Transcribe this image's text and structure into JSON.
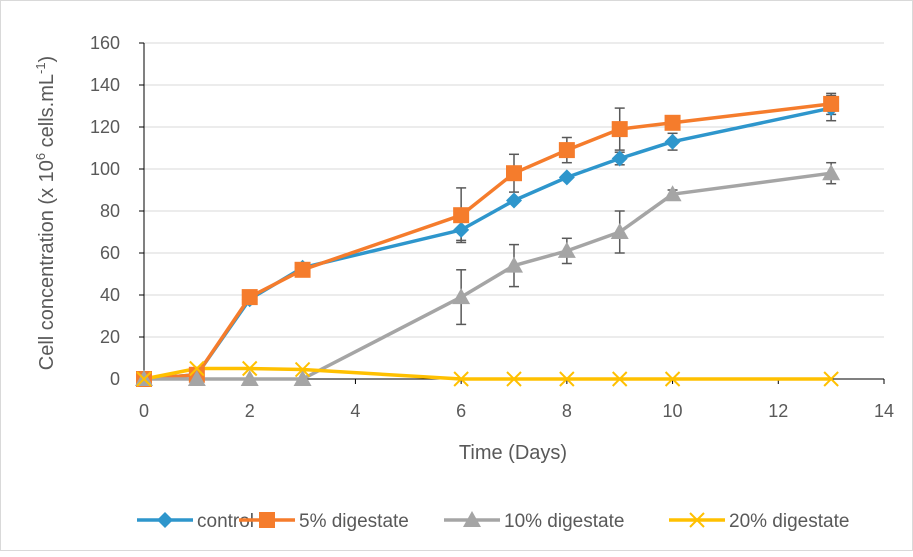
{
  "chart_data": {
    "type": "line",
    "title": "",
    "xlabel": "Time (Days)",
    "ylabel_main": "Cell concentration (x 10",
    "ylabel_exp": "6",
    "ylabel_mid": " cells.mL",
    "ylabel_sup": "-1",
    "ylabel_end": ")",
    "xlim": [
      0,
      14
    ],
    "ylim": [
      0,
      160
    ],
    "xticks": [
      "0",
      "2",
      "4",
      "6",
      "8",
      "10",
      "12",
      "14"
    ],
    "yticks": [
      "0",
      "20",
      "40",
      "60",
      "80",
      "100",
      "120",
      "140",
      "160"
    ],
    "grid": "horizontal",
    "legend_position": "bottom",
    "series": [
      {
        "name": "control",
        "color": "#2e96cc",
        "marker": "diamond",
        "x": [
          0,
          1,
          2,
          3,
          6,
          7,
          8,
          9,
          10,
          13
        ],
        "y": [
          0,
          2,
          38,
          53,
          71,
          85,
          96,
          105,
          113,
          129
        ],
        "err": [
          0,
          0,
          0,
          0,
          5,
          0,
          0,
          3,
          4,
          6
        ]
      },
      {
        "name": "5% digestate",
        "color": "#f57c2c",
        "marker": "square",
        "x": [
          0,
          1,
          2,
          3,
          6,
          7,
          8,
          9,
          10,
          13
        ],
        "y": [
          0,
          2,
          39,
          52,
          78,
          98,
          109,
          119,
          122,
          131
        ],
        "err": [
          0,
          0,
          0,
          0,
          13,
          9,
          6,
          10,
          0,
          5
        ]
      },
      {
        "name": "10% digestate",
        "color": "#a5a5a5",
        "marker": "triangle",
        "x": [
          0,
          1,
          2,
          3,
          6,
          7,
          8,
          9,
          10,
          13
        ],
        "y": [
          0,
          0,
          0,
          0,
          39,
          54,
          61,
          70,
          88,
          98
        ],
        "err": [
          0,
          0,
          0,
          0,
          13,
          10,
          6,
          10,
          2,
          5
        ]
      },
      {
        "name": "20% digestate",
        "color": "#ffc000",
        "marker": "x",
        "x": [
          0,
          1,
          2,
          3,
          6,
          7,
          8,
          9,
          10,
          13
        ],
        "y": [
          0,
          5,
          5,
          4.5,
          0,
          0,
          0,
          0,
          0,
          0
        ],
        "err": [
          0,
          0,
          0,
          0,
          0,
          0,
          0,
          0,
          0,
          0
        ]
      }
    ]
  }
}
